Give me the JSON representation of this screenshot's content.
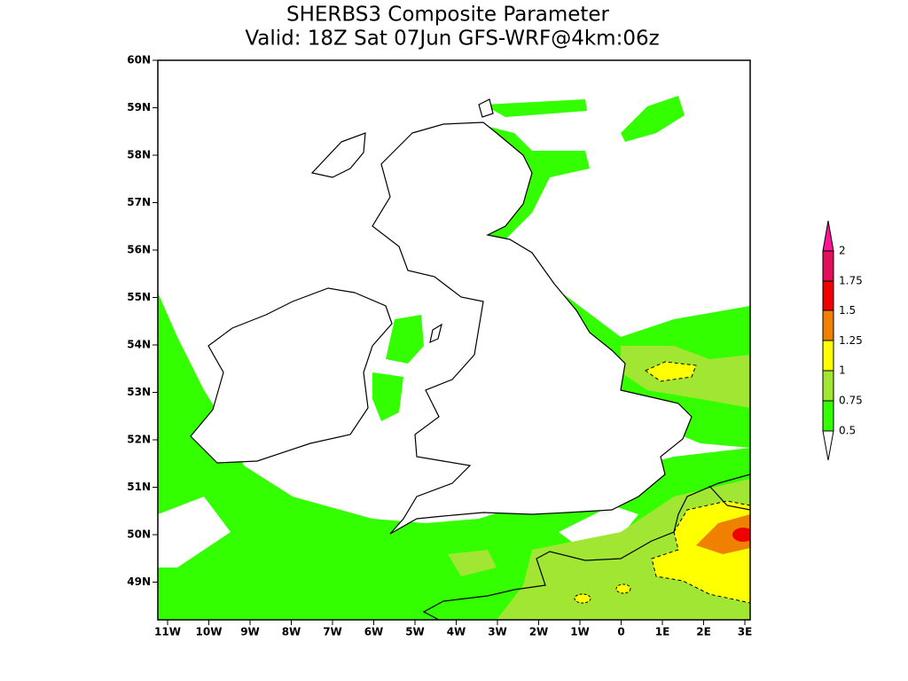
{
  "header": {
    "title": "SHERBS3 Composite Parameter",
    "subtitle": "Valid: 18Z Sat 07Jun GFS-WRF@4km:06z"
  },
  "map": {
    "lat_labels": [
      "60N",
      "59N",
      "58N",
      "57N",
      "56N",
      "55N",
      "54N",
      "53N",
      "52N",
      "51N",
      "50N",
      "49N"
    ],
    "lon_labels": [
      "11W",
      "10W",
      "9W",
      "8W",
      "7W",
      "6W",
      "5W",
      "4W",
      "3W",
      "2W",
      "1W",
      "0",
      "1E",
      "2E",
      "3E"
    ]
  },
  "colorbar": {
    "labels": [
      "2",
      "1.75",
      "1.5",
      "1.25",
      "1",
      "0.75",
      "0.5"
    ]
  }
}
